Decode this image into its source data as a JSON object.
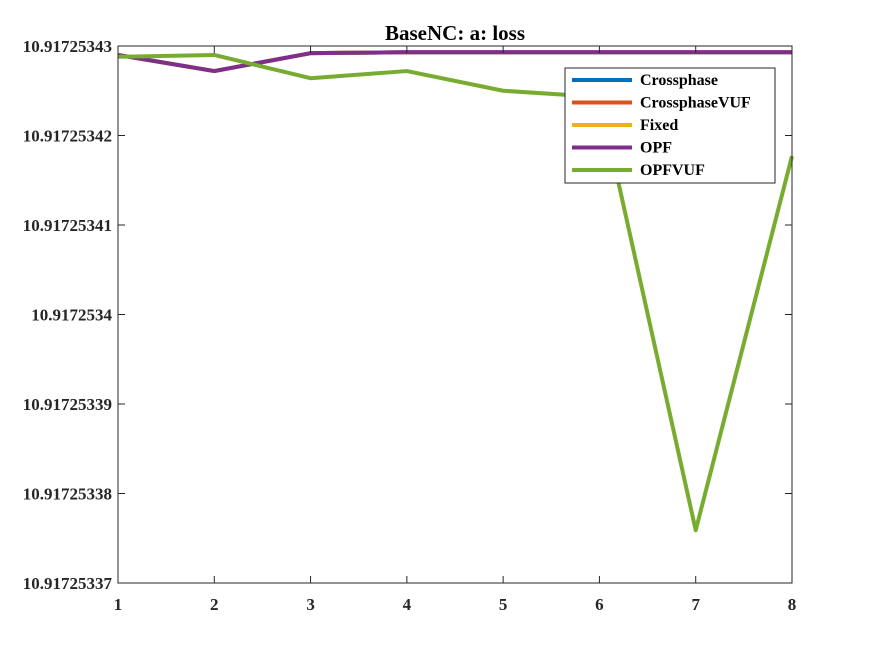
{
  "chart_data": {
    "type": "line",
    "title": "BaseNC: a: loss",
    "xlabel": "",
    "ylabel": "",
    "xlim": [
      1,
      8
    ],
    "ylim": [
      10.91725337,
      10.91725343
    ],
    "x": [
      1,
      2,
      3,
      4,
      5,
      6,
      7,
      8
    ],
    "x_ticks": [
      "1",
      "2",
      "3",
      "4",
      "5",
      "6",
      "7",
      "8"
    ],
    "y_ticks": [
      {
        "value": 10.91725337,
        "label": "10.91725337"
      },
      {
        "value": 10.91725338,
        "label": "10.91725338"
      },
      {
        "value": 10.91725339,
        "label": "10.91725339"
      },
      {
        "value": 10.9172534,
        "label": "10.9172534"
      },
      {
        "value": 10.91725341,
        "label": "10.91725341"
      },
      {
        "value": 10.91725342,
        "label": "10.91725342"
      },
      {
        "value": 10.91725343,
        "label": "10.91725343"
      }
    ],
    "grid": false,
    "legend_position": "top-right",
    "series": [
      {
        "name": "Crossphase",
        "color": "#0072BD",
        "values": [
          10.917253429,
          10.9172534272,
          10.9172534292,
          10.9172534293,
          10.9172534293,
          10.9172534293,
          10.9172534293,
          10.9172534293
        ]
      },
      {
        "name": "CrossphaseVUF",
        "color": "#D95319",
        "values": [
          10.917253429,
          10.9172534272,
          10.9172534292,
          10.9172534293,
          10.9172534293,
          10.9172534293,
          10.9172534293,
          10.9172534293
        ]
      },
      {
        "name": "Fixed",
        "color": "#EDB120",
        "values": [
          10.917253429,
          10.9172534272,
          10.9172534292,
          10.9172534293,
          10.9172534293,
          10.9172534293,
          10.9172534293,
          10.9172534293
        ]
      },
      {
        "name": "OPF",
        "color": "#7E2F8E",
        "values": [
          10.917253429,
          10.9172534272,
          10.9172534292,
          10.9172534293,
          10.9172534293,
          10.9172534293,
          10.9172534293,
          10.9172534293
        ]
      },
      {
        "name": "OPFVUF",
        "color": "#77AC30",
        "values": [
          10.9172534288,
          10.917253429,
          10.9172534264,
          10.9172534272,
          10.917253425,
          10.9172534243,
          10.9172533759,
          10.9172534177
        ]
      }
    ]
  }
}
